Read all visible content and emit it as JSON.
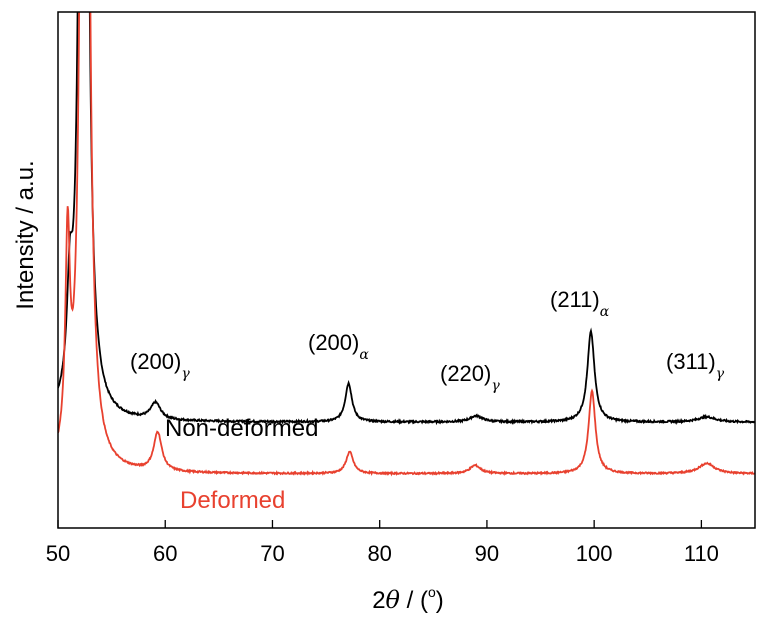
{
  "chart_data": {
    "type": "line",
    "xlabel_main": "2",
    "xlabel_theta": "θ",
    "xlabel_rest": " / (",
    "xlabel_degree": "o",
    "xlabel_close": ")",
    "ylabel": "Intensity / a.u.",
    "xlim": [
      50,
      115
    ],
    "ylim": [
      0,
      100
    ],
    "xticks": [
      50,
      60,
      70,
      80,
      90,
      100,
      110
    ],
    "grid": false,
    "series": [
      {
        "name": "Non-deformed",
        "color": "#000000",
        "baseline": 20.5,
        "noise": 0.35,
        "peaks": [
          {
            "x": 51.1,
            "h": 18,
            "w": 0.3
          },
          {
            "x": 52.4,
            "h": 400,
            "w": 0.28
          },
          {
            "x": 59.1,
            "h": 3.2,
            "w": 0.55
          },
          {
            "x": 77.1,
            "h": 7.5,
            "w": 0.38
          },
          {
            "x": 89.0,
            "h": 1.2,
            "w": 0.7
          },
          {
            "x": 99.7,
            "h": 17.5,
            "w": 0.4
          },
          {
            "x": 110.5,
            "h": 1.0,
            "w": 1.0
          }
        ]
      },
      {
        "name": "Deformed",
        "color": "#e8412f",
        "baseline": 10.5,
        "noise": 0.3,
        "peaks": [
          {
            "x": 50.9,
            "h": 40,
            "w": 0.25
          },
          {
            "x": 52.5,
            "h": 400,
            "w": 0.28
          },
          {
            "x": 59.3,
            "h": 7.5,
            "w": 0.45
          },
          {
            "x": 77.2,
            "h": 4.2,
            "w": 0.4
          },
          {
            "x": 88.9,
            "h": 1.6,
            "w": 0.6
          },
          {
            "x": 99.8,
            "h": 16,
            "w": 0.38
          },
          {
            "x": 110.5,
            "h": 2.0,
            "w": 0.9
          }
        ]
      }
    ],
    "annotations": [
      {
        "text": "(200)",
        "sub": "γ"
      },
      {
        "text": "(200)",
        "sub": "α"
      },
      {
        "text": "(220)",
        "sub": "γ"
      },
      {
        "text": "(211)",
        "sub": "α"
      },
      {
        "text": "(311)",
        "sub": "γ"
      }
    ],
    "series_labels": [
      "Non-deformed",
      "Deformed"
    ]
  }
}
